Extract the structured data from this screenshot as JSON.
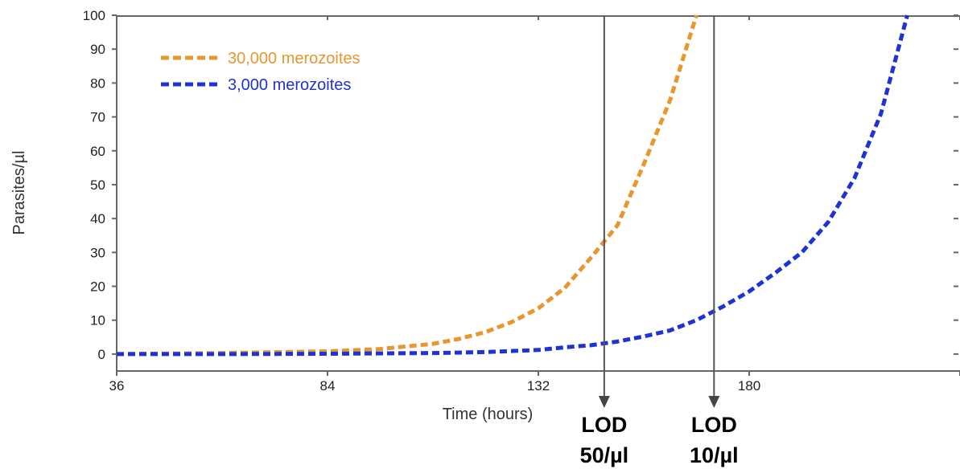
{
  "chart_data": {
    "type": "line",
    "title": "",
    "xlabel": "Time (hours)",
    "ylabel": "Parasites/µl",
    "xlim": [
      36,
      228
    ],
    "ylim": [
      -5,
      100
    ],
    "x_ticks": [
      "36",
      "84",
      "132",
      "180"
    ],
    "y_ticks": [
      "0",
      "10",
      "20",
      "30",
      "40",
      "50",
      "60",
      "70",
      "80",
      "90",
      "100"
    ],
    "grid": false,
    "legend_position": "top-left",
    "series": [
      {
        "name": "30,000 merozoites",
        "color": "#E8962E",
        "style": "dashed",
        "x": [
          36,
          60,
          84,
          96,
          108,
          114,
          120,
          126,
          132,
          138,
          144,
          150,
          156,
          162,
          168
        ],
        "y": [
          0,
          0.3,
          0.8,
          1.5,
          3,
          4.5,
          6.5,
          9.5,
          13.5,
          19.5,
          28.5,
          38,
          56,
          75,
          100
        ]
      },
      {
        "name": "3,000 merozoites",
        "color": "#1F32D6",
        "style": "dashed",
        "x": [
          36,
          60,
          84,
          108,
          120,
          132,
          138,
          144,
          150,
          156,
          162,
          168,
          174,
          180,
          186,
          192,
          198,
          204,
          210,
          216
        ],
        "y": [
          0,
          0,
          0.1,
          0.3,
          0.6,
          1.2,
          2,
          2.6,
          3.7,
          5.2,
          7,
          10,
          14,
          18.5,
          24,
          30,
          39,
          52,
          71,
          100
        ]
      }
    ],
    "annotations": [
      {
        "label_line1": "LOD",
        "label_line2": "50/µl",
        "x": 147
      },
      {
        "label_line1": "LOD",
        "label_line2": "10/µl",
        "x": 172
      }
    ]
  }
}
